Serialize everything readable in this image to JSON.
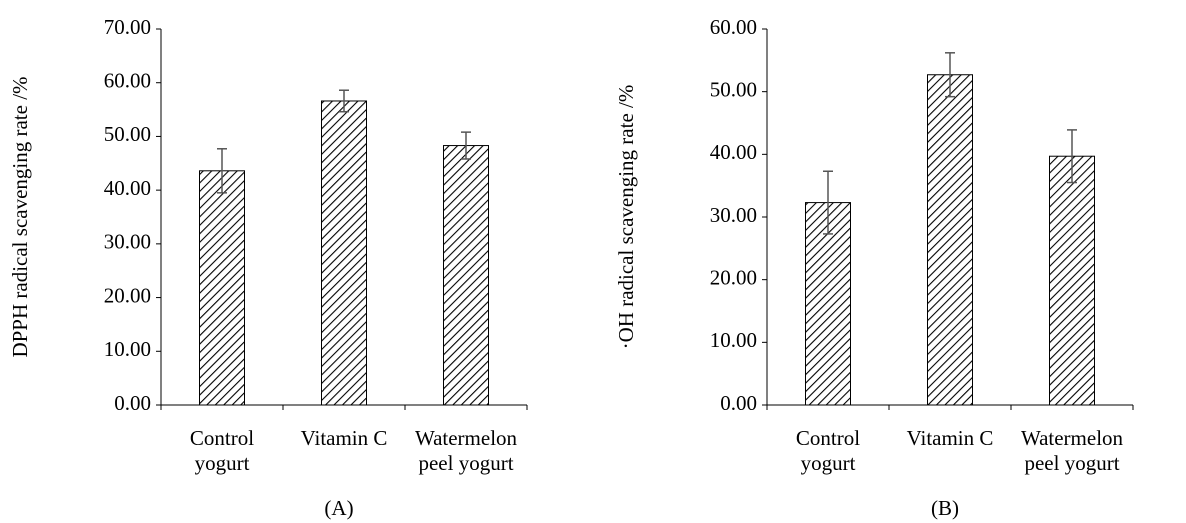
{
  "chart_data": [
    {
      "type": "bar",
      "y_label": "DPPH radical scavenging rate /%",
      "panel_label": "(A)",
      "categories": [
        "Control\nyogurt",
        "Vitamin C",
        "Watermelon\npeel yogurt"
      ],
      "values": [
        43.6,
        56.6,
        48.3
      ],
      "errors": [
        4.1,
        2.0,
        2.5
      ],
      "color": "#ffffff",
      "ylim": [
        0,
        70
      ],
      "yticks": [
        {
          "value": 0,
          "label": "0.00"
        },
        {
          "value": 10,
          "label": "10.00"
        },
        {
          "value": 20,
          "label": "20.00"
        },
        {
          "value": 30,
          "label": "30.00"
        },
        {
          "value": 40,
          "label": "40.00"
        },
        {
          "value": 50,
          "label": "50.00"
        },
        {
          "value": 60,
          "label": "60.00"
        },
        {
          "value": 70,
          "label": "70.00"
        }
      ]
    },
    {
      "type": "bar",
      "y_label": "·OH radical scavenging rate /%",
      "panel_label": "(B)",
      "categories": [
        "Control\nyogurt",
        "Vitamin C",
        "Watermelon\npeel yogurt"
      ],
      "values": [
        32.3,
        52.7,
        39.7
      ],
      "errors": [
        5.0,
        3.5,
        4.2
      ],
      "color": "#ffffff",
      "ylim": [
        0,
        60
      ],
      "yticks": [
        {
          "value": 0,
          "label": "0.00"
        },
        {
          "value": 10,
          "label": "10.00"
        },
        {
          "value": 20,
          "label": "20.00"
        },
        {
          "value": 30,
          "label": "30.00"
        },
        {
          "value": 40,
          "label": "40.00"
        },
        {
          "value": 50,
          "label": "50.00"
        },
        {
          "value": 60,
          "label": "60.00"
        }
      ]
    }
  ]
}
